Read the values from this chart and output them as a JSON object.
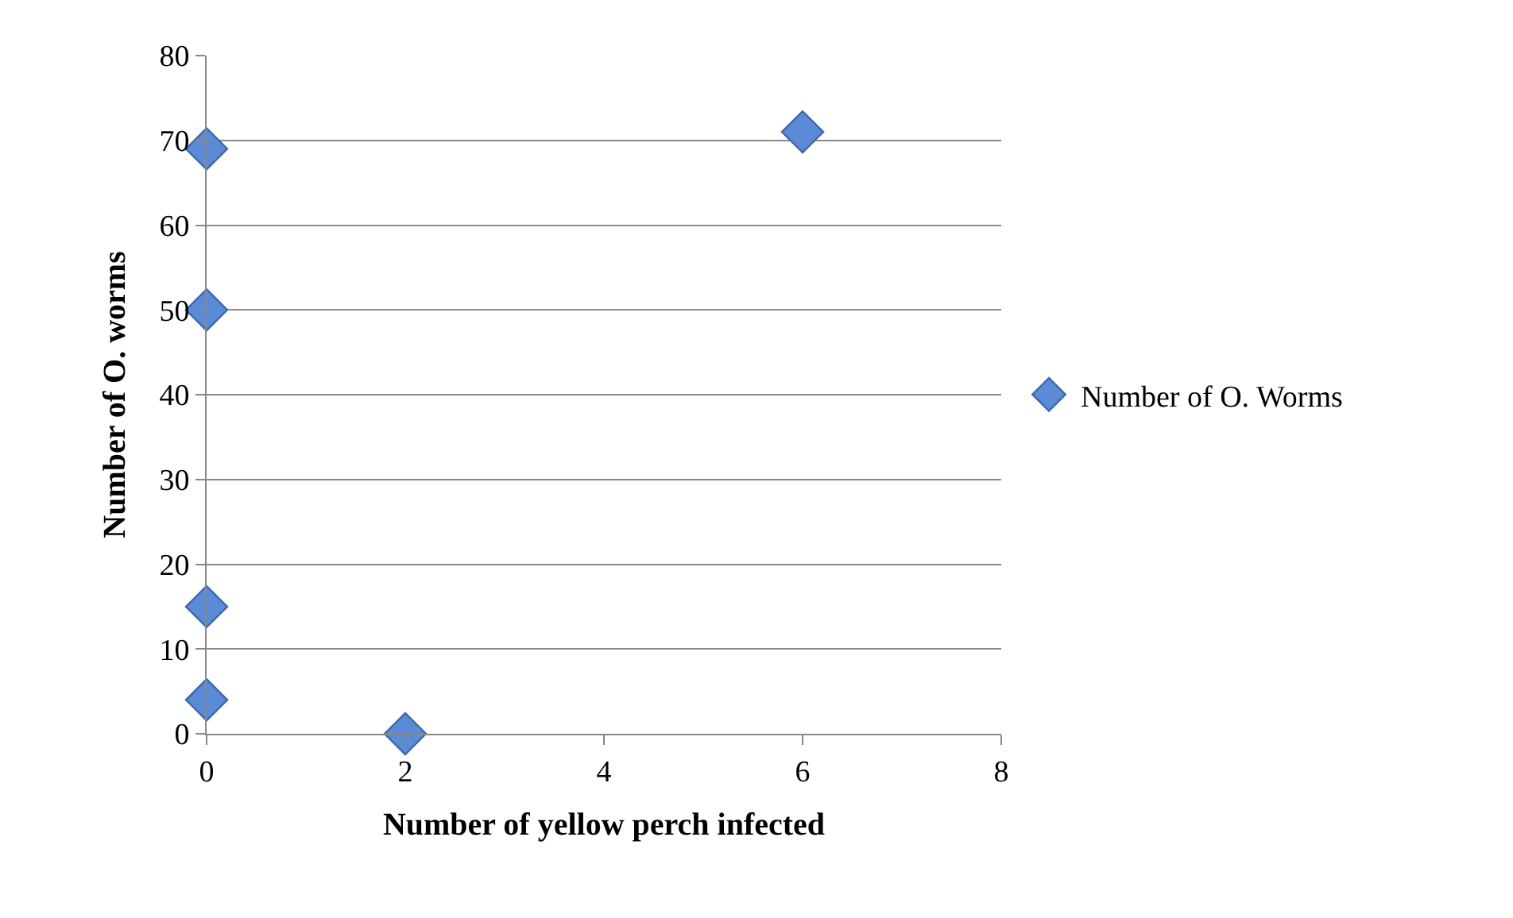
{
  "chart_data": {
    "type": "scatter",
    "xlabel": "Number of yellow perch infected",
    "ylabel": "Number of O. worms",
    "series": [
      {
        "name": "Number of O. Worms",
        "color": "#5b8bd4",
        "x": [
          0,
          0,
          0,
          0,
          2,
          6
        ],
        "values": [
          69,
          50,
          15,
          4,
          0,
          71
        ]
      }
    ],
    "xlim": [
      0,
      8
    ],
    "xticks": [
      0,
      2,
      4,
      6,
      8
    ],
    "ylim": [
      0,
      80
    ],
    "yticks": [
      0,
      10,
      20,
      30,
      40,
      50,
      60,
      70,
      80
    ],
    "grid": "y",
    "legend": "right",
    "marker": "diamond"
  }
}
